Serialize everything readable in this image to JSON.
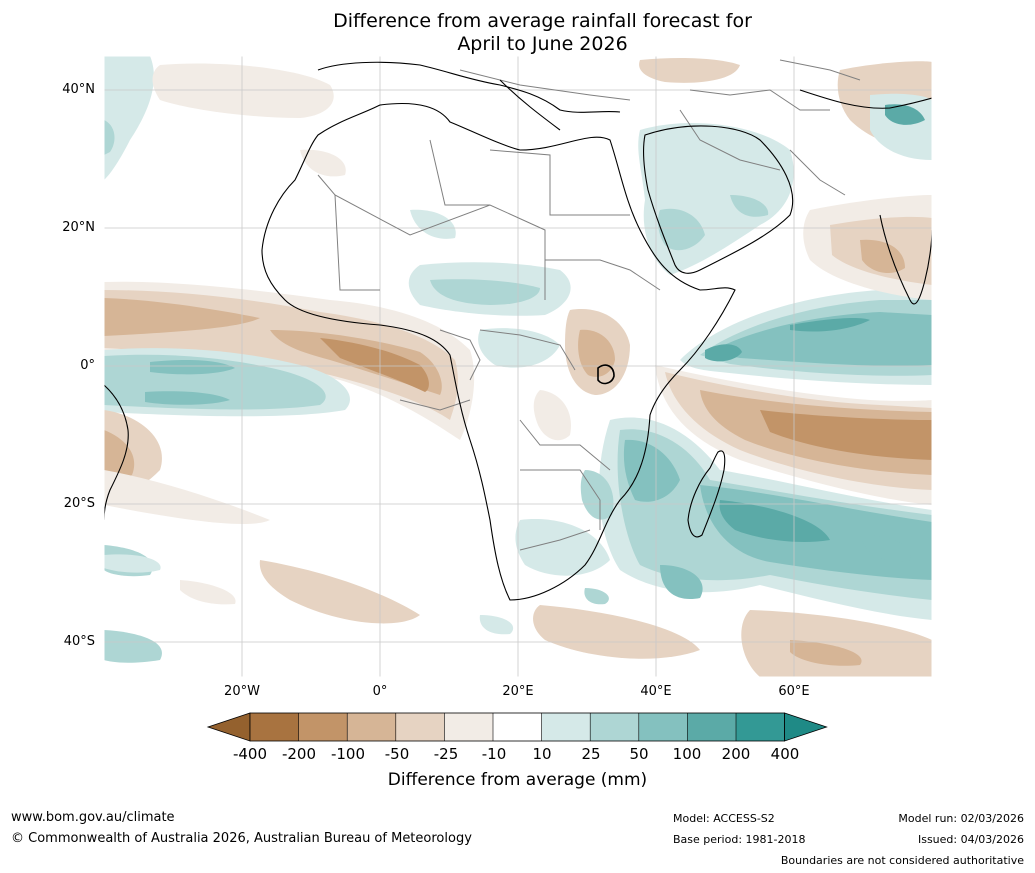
{
  "title": {
    "line1": "Difference from average rainfall forecast for",
    "line2": "April to June 2026"
  },
  "lat_labels": [
    "40°N",
    "20°N",
    "0°",
    "20°S",
    "40°S"
  ],
  "lon_labels": [
    "20°W",
    "0°",
    "20°E",
    "40°E",
    "60°E"
  ],
  "legend": {
    "ticks": [
      "-400",
      "-200",
      "-100",
      "-50",
      "-25",
      "-10",
      "10",
      "25",
      "50",
      "100",
      "200",
      "400"
    ],
    "colors": [
      "#a87340",
      "#c29468",
      "#d6b596",
      "#e6d3c2",
      "#f2ece6",
      "#ffffff",
      "#d5e9e8",
      "#aed6d4",
      "#84c1bf",
      "#5baaa7",
      "#339995"
    ],
    "label": "Difference from average (mm)"
  },
  "footer": {
    "website": "www.bom.gov.au/climate",
    "copyright": "© Commonwealth of Australia 2026, Australian Bureau of Meteorology",
    "model": "Model: ACCESS-S2",
    "base_period": "Base period: 1981-2018",
    "model_run": "Model run: 02/03/2026",
    "issued": "Issued: 04/03/2026",
    "disclaimer": "Boundaries are not considered authoritative"
  }
}
